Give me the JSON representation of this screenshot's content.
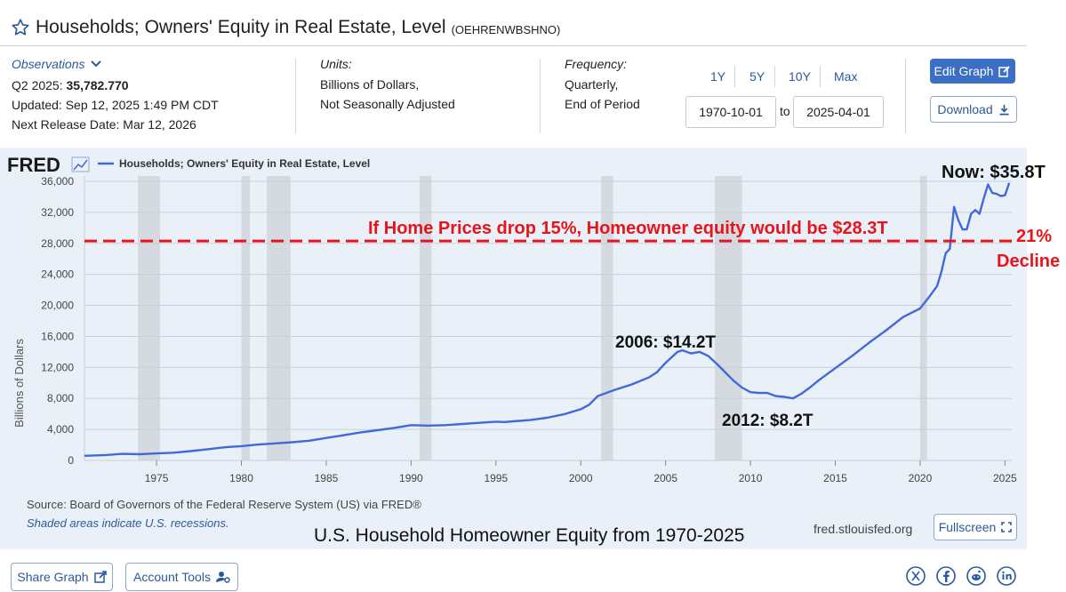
{
  "header": {
    "series_title": "Households; Owners' Equity in Real Estate, Level",
    "series_id": "(OEHRENWBSHNO)"
  },
  "observations": {
    "label": "Observations",
    "period": "Q2 2025:",
    "value": "35,782.770",
    "updated": "Updated: Sep 12, 2025 1:49 PM CDT",
    "next_release": "Next Release Date: Mar 12, 2026"
  },
  "units": {
    "label": "Units:",
    "line1": "Billions of Dollars,",
    "line2": "Not Seasonally Adjusted"
  },
  "frequency": {
    "label": "Frequency:",
    "line1": "Quarterly,",
    "line2": "End of Period"
  },
  "range_buttons": [
    "1Y",
    "5Y",
    "10Y",
    "Max"
  ],
  "date_range": {
    "from": "1970-10-01",
    "to_label": "to",
    "to": "2025-04-01"
  },
  "buttons": {
    "edit_graph": "Edit Graph",
    "download": "Download",
    "fullscreen": "Fullscreen",
    "share_graph": "Share Graph",
    "account_tools": "Account Tools"
  },
  "chart_footer": {
    "source": "Source: Board of Governors of the Federal Reserve System (US) via FRED®",
    "shaded": "Shaded areas indicate U.S. recessions.",
    "site": "fred.stlouisfed.org",
    "caption": "U.S. Household Homeowner Equity from 1970-2025"
  },
  "colors": {
    "line": "#4169d8",
    "annotation_red": "#e8141b",
    "recession": "#d5d9e0",
    "panel": "#eaf0f8",
    "accent": "#2a5a9b"
  },
  "chart_data": {
    "type": "line",
    "logo": "FRED",
    "legend": "Households; Owners' Equity in Real Estate, Level",
    "ylabel": "Billions of Dollars",
    "xlim": [
      1970.75,
      2025.4
    ],
    "ylim": [
      0,
      36000
    ],
    "y_ticks": [
      0,
      4000,
      8000,
      12000,
      16000,
      20000,
      24000,
      28000,
      32000,
      36000
    ],
    "y_tick_labels": [
      "0",
      "4,000",
      "8,000",
      "12,000",
      "16,000",
      "20,000",
      "24,000",
      "28,000",
      "32,000",
      "36,000"
    ],
    "x_ticks": [
      1975,
      1980,
      1985,
      1990,
      1995,
      2000,
      2005,
      2010,
      2015,
      2020,
      2025
    ],
    "x_tick_labels": [
      "1975",
      "1980",
      "1985",
      "1990",
      "1995",
      "2000",
      "2005",
      "2010",
      "2015",
      "2020",
      "2025"
    ],
    "recessions": [
      [
        1973.9,
        1975.2
      ],
      [
        1980.0,
        1980.5
      ],
      [
        1981.5,
        1982.9
      ],
      [
        1990.5,
        1991.2
      ],
      [
        2001.2,
        2001.9
      ],
      [
        2007.9,
        2009.5
      ],
      [
        2020.0,
        2020.4
      ]
    ],
    "series": [
      {
        "name": "Households; Owners' Equity in Real Estate, Level",
        "x": [
          1970.75,
          1972,
          1973,
          1974,
          1975,
          1976,
          1977,
          1978,
          1979,
          1980,
          1981,
          1982,
          1983,
          1984,
          1985,
          1986,
          1987,
          1988,
          1989,
          1990,
          1991,
          1992,
          1993,
          1994,
          1995,
          1995.5,
          1996,
          1997,
          1998,
          1999,
          2000,
          2000.5,
          2001,
          2002,
          2003,
          2004,
          2004.5,
          2005,
          2005.7,
          2006,
          2006.5,
          2007,
          2007.5,
          2008,
          2008.5,
          2009,
          2009.5,
          2010,
          2010.5,
          2011,
          2011.5,
          2012,
          2012.5,
          2013,
          2013.5,
          2014,
          2015,
          2016,
          2017,
          2018,
          2019,
          2020,
          2020.5,
          2021,
          2021.25,
          2021.5,
          2021.75,
          2022,
          2022.25,
          2022.5,
          2022.75,
          2023,
          2023.25,
          2023.5,
          2023.75,
          2024,
          2024.25,
          2024.5,
          2024.75,
          2025,
          2025.25
        ],
        "values": [
          600,
          700,
          850,
          800,
          900,
          1000,
          1200,
          1450,
          1700,
          1850,
          2050,
          2200,
          2350,
          2550,
          2900,
          3250,
          3600,
          3900,
          4200,
          4550,
          4500,
          4550,
          4700,
          4850,
          5000,
          4950,
          5050,
          5200,
          5500,
          5950,
          6600,
          7200,
          8300,
          9100,
          9800,
          10700,
          11400,
          12600,
          14000,
          14200,
          13800,
          14000,
          13500,
          12500,
          11400,
          10300,
          9400,
          8800,
          8700,
          8700,
          8300,
          8200,
          8000,
          8600,
          9400,
          10300,
          11900,
          13500,
          15200,
          16800,
          18500,
          19600,
          21000,
          22500,
          24300,
          26700,
          27300,
          32700,
          31000,
          29800,
          29800,
          31800,
          32300,
          31800,
          33800,
          35600,
          34500,
          34400,
          34100,
          34200,
          35800
        ]
      }
    ],
    "annotations": {
      "now": "Now: $35.8T",
      "drop_line": "If Home Prices drop 15%, Homeowner equity would be $28.3T",
      "drop_value": 28300,
      "decline_1": "21%",
      "decline_2": "Decline",
      "peak_2006": "2006: $14.2T",
      "low_2012": "2012: $8.2T"
    }
  }
}
